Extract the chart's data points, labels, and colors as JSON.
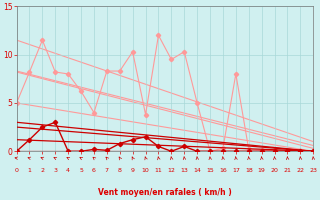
{
  "bg_color": "#d0f0f0",
  "grid_color": "#a8d8d8",
  "text_color": "#dd0000",
  "xlabel": "Vent moyen/en rafales ( km/h )",
  "xlim": [
    0,
    23
  ],
  "ylim": [
    0,
    15
  ],
  "yticks": [
    0,
    5,
    10,
    15
  ],
  "xticks": [
    0,
    1,
    2,
    3,
    4,
    5,
    6,
    7,
    8,
    9,
    10,
    11,
    12,
    13,
    14,
    15,
    16,
    17,
    18,
    19,
    20,
    21,
    22,
    23
  ],
  "light_color": "#ff9999",
  "dark_color": "#cc0000",
  "x_all": [
    0,
    1,
    2,
    3,
    4,
    5,
    6,
    7,
    8,
    9,
    10,
    11,
    12,
    13,
    14,
    15,
    16,
    17,
    18,
    19,
    20,
    21,
    22,
    23
  ],
  "y_gust_spiky": [
    5.0,
    8.2,
    11.5,
    8.2,
    8.0,
    6.2,
    4.0,
    8.3,
    8.3,
    10.3,
    3.8,
    12.0,
    9.5,
    10.3,
    5.0,
    0.0,
    0.3,
    8.0,
    0.2,
    0.1,
    0.1,
    0.0,
    0.0,
    0.0
  ],
  "y_mean_spiky": [
    0.0,
    1.2,
    2.5,
    3.0,
    0.0,
    0.0,
    0.2,
    0.1,
    0.8,
    1.2,
    1.5,
    0.5,
    0.0,
    0.5,
    0.0,
    0.0,
    0.0,
    0.0,
    0.0,
    0.0,
    0.0,
    0.0,
    0.0,
    0.0
  ],
  "light_trends": [
    [
      [
        0,
        23
      ],
      [
        5.0,
        0.0
      ]
    ],
    [
      [
        0,
        23
      ],
      [
        8.2,
        0.3
      ]
    ],
    [
      [
        0,
        23
      ],
      [
        8.3,
        0.6
      ]
    ],
    [
      [
        0,
        23
      ],
      [
        11.5,
        1.0
      ]
    ]
  ],
  "dark_trends": [
    [
      [
        0,
        23
      ],
      [
        0.0,
        0.0
      ]
    ],
    [
      [
        0,
        23
      ],
      [
        1.2,
        0.0
      ]
    ],
    [
      [
        0,
        23
      ],
      [
        2.5,
        0.0
      ]
    ],
    [
      [
        0,
        23
      ],
      [
        3.0,
        0.0
      ]
    ]
  ],
  "arrow_angles": [
    260,
    250,
    245,
    240,
    235,
    230,
    220,
    215,
    205,
    200,
    195,
    190,
    188,
    186,
    185,
    185,
    185,
    185,
    185,
    185,
    185,
    185,
    185,
    185
  ]
}
